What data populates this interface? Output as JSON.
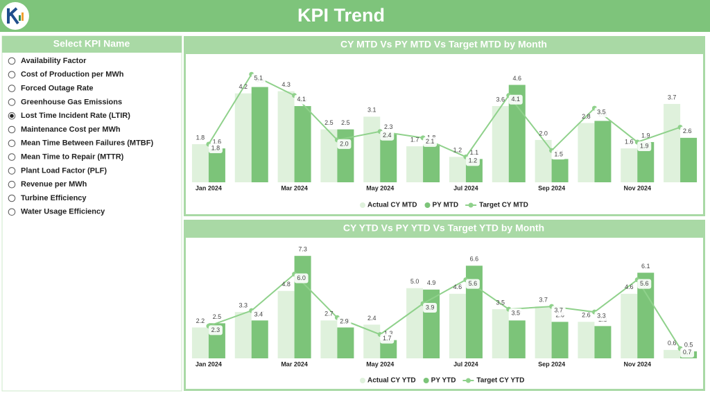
{
  "header": {
    "title": "KPI Trend"
  },
  "slicer": {
    "title": "Select KPI Name",
    "items": [
      "Availability Factor",
      "Cost of Production per MWh",
      "Forced Outage Rate",
      "Greenhouse Gas Emissions",
      "Lost Time Incident Rate (LTIR)",
      "Maintenance Cost per MWh",
      "Mean Time Between Failures (MTBF)",
      "Mean Time to Repair (MTTR)",
      "Plant Load Factor (PLF)",
      "Revenue per MWh",
      "Turbine Efficiency",
      "Water Usage Efficiency"
    ],
    "selected_index": 4
  },
  "chart_data": [
    {
      "type": "bar",
      "title": "CY MTD Vs PY MTD Vs Target MTD by Month",
      "categories": [
        "Jan 2024",
        null,
        "Mar 2024",
        null,
        "May 2024",
        null,
        "Jul 2024",
        null,
        "Sep 2024",
        null,
        "Nov 2024",
        null
      ],
      "ylim": [
        0,
        5.5
      ],
      "series": [
        {
          "name": "Actual CY MTD",
          "type": "bar",
          "color": "#dff1dc",
          "values": [
            1.8,
            4.2,
            4.3,
            2.5,
            3.1,
            1.7,
            1.2,
            3.6,
            2.0,
            2.8,
            1.6,
            3.7
          ],
          "value_labels": [
            "1.8",
            "4.2",
            "4.3",
            "2.5",
            "3.1",
            "1.7",
            "1.2",
            "3.6",
            "2.0",
            "2.8",
            "1.6",
            "3.7"
          ]
        },
        {
          "name": "PY MTD",
          "type": "bar",
          "color": "#7cc479",
          "values": [
            1.6,
            4.5,
            3.6,
            2.5,
            2.3,
            1.8,
            1.1,
            4.6,
            1.1,
            2.9,
            1.9,
            2.1
          ],
          "value_labels": [
            "1.6",
            "4.5",
            "3.6",
            "2.5",
            "2.3",
            "1.8",
            "1.1",
            "4.6",
            "1.1",
            "2.9",
            "1.9",
            "2.1"
          ]
        },
        {
          "name": "Target CY MTD",
          "type": "line",
          "color": "#8fd18b",
          "values": [
            1.8,
            5.1,
            4.1,
            2.0,
            2.4,
            2.1,
            1.2,
            4.1,
            1.5,
            3.5,
            1.9,
            2.6
          ],
          "value_labels": [
            "1.8",
            "5.1",
            "4.1",
            "2.0",
            "2.4",
            "2.1",
            "1.2",
            "4.1",
            "1.5",
            "3.5",
            "1.9",
            "2.6"
          ]
        }
      ]
    },
    {
      "type": "bar",
      "title": "CY YTD Vs PY YTD Vs Target YTD by Month",
      "categories": [
        "Jan 2024",
        null,
        "Mar 2024",
        null,
        "May 2024",
        null,
        "Jul 2024",
        null,
        "Sep 2024",
        null,
        "Nov 2024",
        null
      ],
      "ylim": [
        0,
        8
      ],
      "series": [
        {
          "name": "Actual CY YTD",
          "type": "bar",
          "color": "#dff1dc",
          "values": [
            2.2,
            3.3,
            4.8,
            2.7,
            2.4,
            5.0,
            4.6,
            3.5,
            3.7,
            2.6,
            4.6,
            0.6
          ],
          "value_labels": [
            "2.2",
            "3.3",
            "4.8",
            "2.7",
            "2.4",
            "5.0",
            "4.6",
            "3.5",
            "3.7",
            "2.6",
            "4.6",
            "0.6"
          ]
        },
        {
          "name": "PY YTD",
          "type": "bar",
          "color": "#7cc479",
          "values": [
            2.5,
            2.7,
            7.3,
            2.2,
            1.3,
            4.9,
            6.6,
            2.7,
            2.6,
            2.3,
            6.1,
            0.5
          ],
          "value_labels": [
            "2.5",
            "2.7",
            "7.3",
            "2.2",
            "1.3",
            "4.9",
            "6.6",
            "2.7",
            "2.6",
            "2.3",
            "6.1",
            "0.5"
          ]
        },
        {
          "name": "Target CY YTD",
          "type": "line",
          "color": "#8fd18b",
          "values": [
            2.3,
            3.4,
            6.0,
            2.9,
            1.7,
            3.9,
            5.6,
            3.5,
            3.7,
            3.3,
            5.6,
            0.7
          ],
          "value_labels": [
            "2.3",
            "3.4",
            "6.0",
            "2.9",
            "1.7",
            "3.9",
            "5.6",
            "3.5",
            "3.7",
            "3.3",
            "5.6",
            "0.7"
          ]
        }
      ]
    }
  ]
}
